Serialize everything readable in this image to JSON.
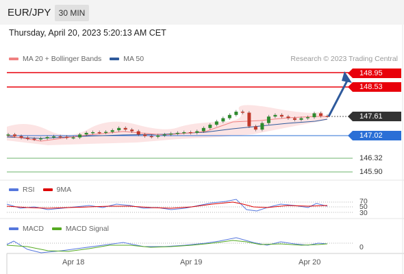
{
  "header": {
    "symbol": "EUR/JPY",
    "timeframe": "30 MIN"
  },
  "datetime": "Thursday, April 20, 2023 5:20:13 AM CET",
  "legend": {
    "ma20": "MA 20 + Bollinger Bands",
    "ma50": "MA 50",
    "rsi": "RSI",
    "rsi_ma": "9MA",
    "macd": "MACD",
    "macd_signal": "MACD Signal"
  },
  "credit": "Research © 2023 Trading Central",
  "levels": {
    "r2": "148.95",
    "r1": "148.53",
    "last": "147.61",
    "pivot": "147.02",
    "s1": "146.32",
    "s2": "145.90"
  },
  "rsi_levels": [
    "70",
    "50",
    "30"
  ],
  "macd_zero": "0",
  "dates": [
    "Apr 18",
    "Apr 19",
    "Apr 20"
  ],
  "colors": {
    "resistance": "#e8000b",
    "pivot": "#2a6fd6",
    "support": "#3a9a3a",
    "ma20": "#f08080",
    "ma50": "#2e5a9c",
    "rsi": "#5577dd",
    "rsi_ma": "#dd0000",
    "macd": "#5577dd",
    "macd_signal": "#55aa22",
    "candle_up": "#2e8b2e",
    "candle_down": "#c0392b"
  },
  "chart_data": {
    "type": "candlestick",
    "symbol": "EUR/JPY",
    "timeframe": "30 MIN",
    "x_ticks": [
      "Apr 18",
      "Apr 19",
      "Apr 20"
    ],
    "price_levels": [
      148.95,
      148.53,
      147.61,
      147.02,
      146.32,
      145.9
    ],
    "close_series": [
      147.05,
      147.0,
      146.95,
      146.92,
      146.9,
      146.93,
      146.97,
      146.99,
      146.98,
      146.95,
      146.96,
      147.05,
      147.1,
      147.12,
      147.11,
      147.13,
      147.18,
      147.25,
      147.2,
      147.15,
      147.05,
      147.0,
      146.98,
      147.02,
      147.05,
      147.08,
      147.1,
      147.12,
      147.1,
      147.15,
      147.25,
      147.35,
      147.45,
      147.55,
      147.65,
      147.75,
      147.72,
      147.3,
      147.2,
      147.4,
      147.6,
      147.65,
      147.6,
      147.55,
      147.5,
      147.55,
      147.58,
      147.7,
      147.62,
      147.61
    ],
    "rsi": {
      "levels": [
        70,
        50,
        30
      ]
    },
    "macd": {
      "zero": 0
    }
  }
}
